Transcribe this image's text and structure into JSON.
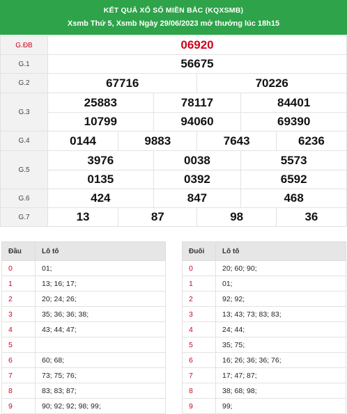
{
  "header": {
    "title": "KẾT QUẢ XỔ SỐ MIỀN BẮC (KQXSMB)",
    "subtitle": "Xsmb Thứ 5, Xsmb Ngày 29/06/2023 mở thưởng lúc 18h15"
  },
  "prizes": {
    "gdb": {
      "label": "G.ĐB",
      "numbers": [
        "06920"
      ]
    },
    "g1": {
      "label": "G.1",
      "numbers": [
        "56675"
      ]
    },
    "g2": {
      "label": "G.2",
      "numbers": [
        "67716",
        "70226"
      ]
    },
    "g3": {
      "label": "G.3",
      "numbers": [
        "25883",
        "78117",
        "84401",
        "10799",
        "94060",
        "69390"
      ]
    },
    "g4": {
      "label": "G.4",
      "numbers": [
        "0144",
        "9883",
        "7643",
        "6236"
      ]
    },
    "g5": {
      "label": "G.5",
      "numbers": [
        "3976",
        "0038",
        "5573",
        "0135",
        "0392",
        "6592"
      ]
    },
    "g6": {
      "label": "G.6",
      "numbers": [
        "424",
        "847",
        "468"
      ]
    },
    "g7": {
      "label": "G.7",
      "numbers": [
        "13",
        "87",
        "98",
        "36"
      ]
    }
  },
  "dau_table": {
    "col1": "Đầu",
    "col2": "Lô tô",
    "rows": [
      {
        "k": "0",
        "v": "01;"
      },
      {
        "k": "1",
        "v": "13; 16; 17;"
      },
      {
        "k": "2",
        "v": "20; 24; 26;"
      },
      {
        "k": "3",
        "v": "35; 36; 36; 38;"
      },
      {
        "k": "4",
        "v": "43; 44; 47;"
      },
      {
        "k": "5",
        "v": ""
      },
      {
        "k": "6",
        "v": "60; 68;"
      },
      {
        "k": "7",
        "v": "73; 75; 76;"
      },
      {
        "k": "8",
        "v": "83; 83; 87;"
      },
      {
        "k": "9",
        "v": "90; 92; 92; 98; 99;"
      }
    ]
  },
  "duoi_table": {
    "col1": "Đuôi",
    "col2": "Lô tô",
    "rows": [
      {
        "k": "0",
        "v": "20; 60; 90;"
      },
      {
        "k": "1",
        "v": "01;"
      },
      {
        "k": "2",
        "v": "92; 92;"
      },
      {
        "k": "3",
        "v": "13; 43; 73; 83; 83;"
      },
      {
        "k": "4",
        "v": "24; 44;"
      },
      {
        "k": "5",
        "v": "35; 75;"
      },
      {
        "k": "6",
        "v": "16; 26; 36; 36; 76;"
      },
      {
        "k": "7",
        "v": "17; 47; 87;"
      },
      {
        "k": "8",
        "v": "38; 68; 98;"
      },
      {
        "k": "9",
        "v": "99;"
      }
    ]
  },
  "colors": {
    "header_bg": "#2ea34a",
    "special_red": "#d0021b"
  }
}
